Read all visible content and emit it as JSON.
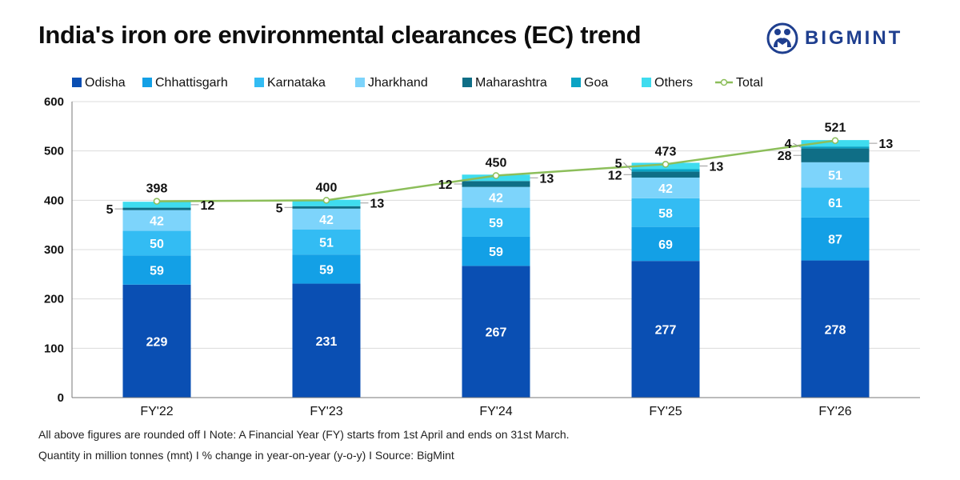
{
  "header": {
    "title": "India's iron ore environmental clearances (EC) trend",
    "brand": "BIGMINT"
  },
  "footer": {
    "line1": "All above figures are rounded off  I  Note: A Financial Year (FY) starts from 1st April and ends on 31st March.",
    "line2": "Quantity in million tonnes (mnt)  I  % change in year-on-year (y-o-y)  I  Source: BigMint"
  },
  "colors": {
    "Odisha": "#0a4fb3",
    "Chhattisgarh": "#13a0e6",
    "Karnataka": "#33bcf3",
    "Jharkhand": "#7dd4fb",
    "Maharashtra": "#0f6e86",
    "Goa": "#0aa3c4",
    "Others": "#3fdcef",
    "Total": "#8cbe5a",
    "brand": "#1f3f8f"
  },
  "chart_data": {
    "type": "bar",
    "stacked": true,
    "categories": [
      "FY'22",
      "FY'23",
      "FY'24",
      "FY'25",
      "FY'26"
    ],
    "series": [
      {
        "name": "Odisha",
        "values": [
          229,
          231,
          267,
          277,
          278
        ],
        "labels": [
          "229",
          "231",
          "267",
          "277",
          "278"
        ]
      },
      {
        "name": "Chhattisgarh",
        "values": [
          59,
          59,
          59,
          69,
          87
        ],
        "labels": [
          "59",
          "59",
          "59",
          "69",
          "87"
        ]
      },
      {
        "name": "Karnataka",
        "values": [
          50,
          51,
          59,
          58,
          61
        ],
        "labels": [
          "50",
          "51",
          "59",
          "58",
          "61"
        ]
      },
      {
        "name": "Jharkhand",
        "values": [
          42,
          42,
          42,
          42,
          51
        ],
        "labels": [
          "42",
          "42",
          "42",
          "42",
          "51"
        ]
      },
      {
        "name": "Maharashtra",
        "values": [
          5,
          5,
          12,
          12,
          28
        ],
        "labels": [
          "5",
          "5",
          "12",
          "12",
          "28"
        ]
      },
      {
        "name": "Goa",
        "values": [
          0,
          0,
          0,
          5,
          4
        ],
        "labels": [
          "",
          "",
          "",
          "5",
          "4"
        ]
      },
      {
        "name": "Others",
        "values": [
          12,
          13,
          13,
          13,
          13
        ],
        "labels": [
          "12",
          "13",
          "13",
          "13",
          "13"
        ]
      }
    ],
    "line": {
      "name": "Total",
      "values": [
        398,
        400,
        450,
        473,
        521
      ],
      "labels": [
        "398",
        "400",
        "450",
        "473",
        "521"
      ]
    },
    "ylim": [
      0,
      600
    ],
    "yticks": [
      "0",
      "100",
      "200",
      "300",
      "400",
      "500",
      "600"
    ],
    "grid": true,
    "legend": "top-left",
    "xlabel": "",
    "ylabel": ""
  }
}
